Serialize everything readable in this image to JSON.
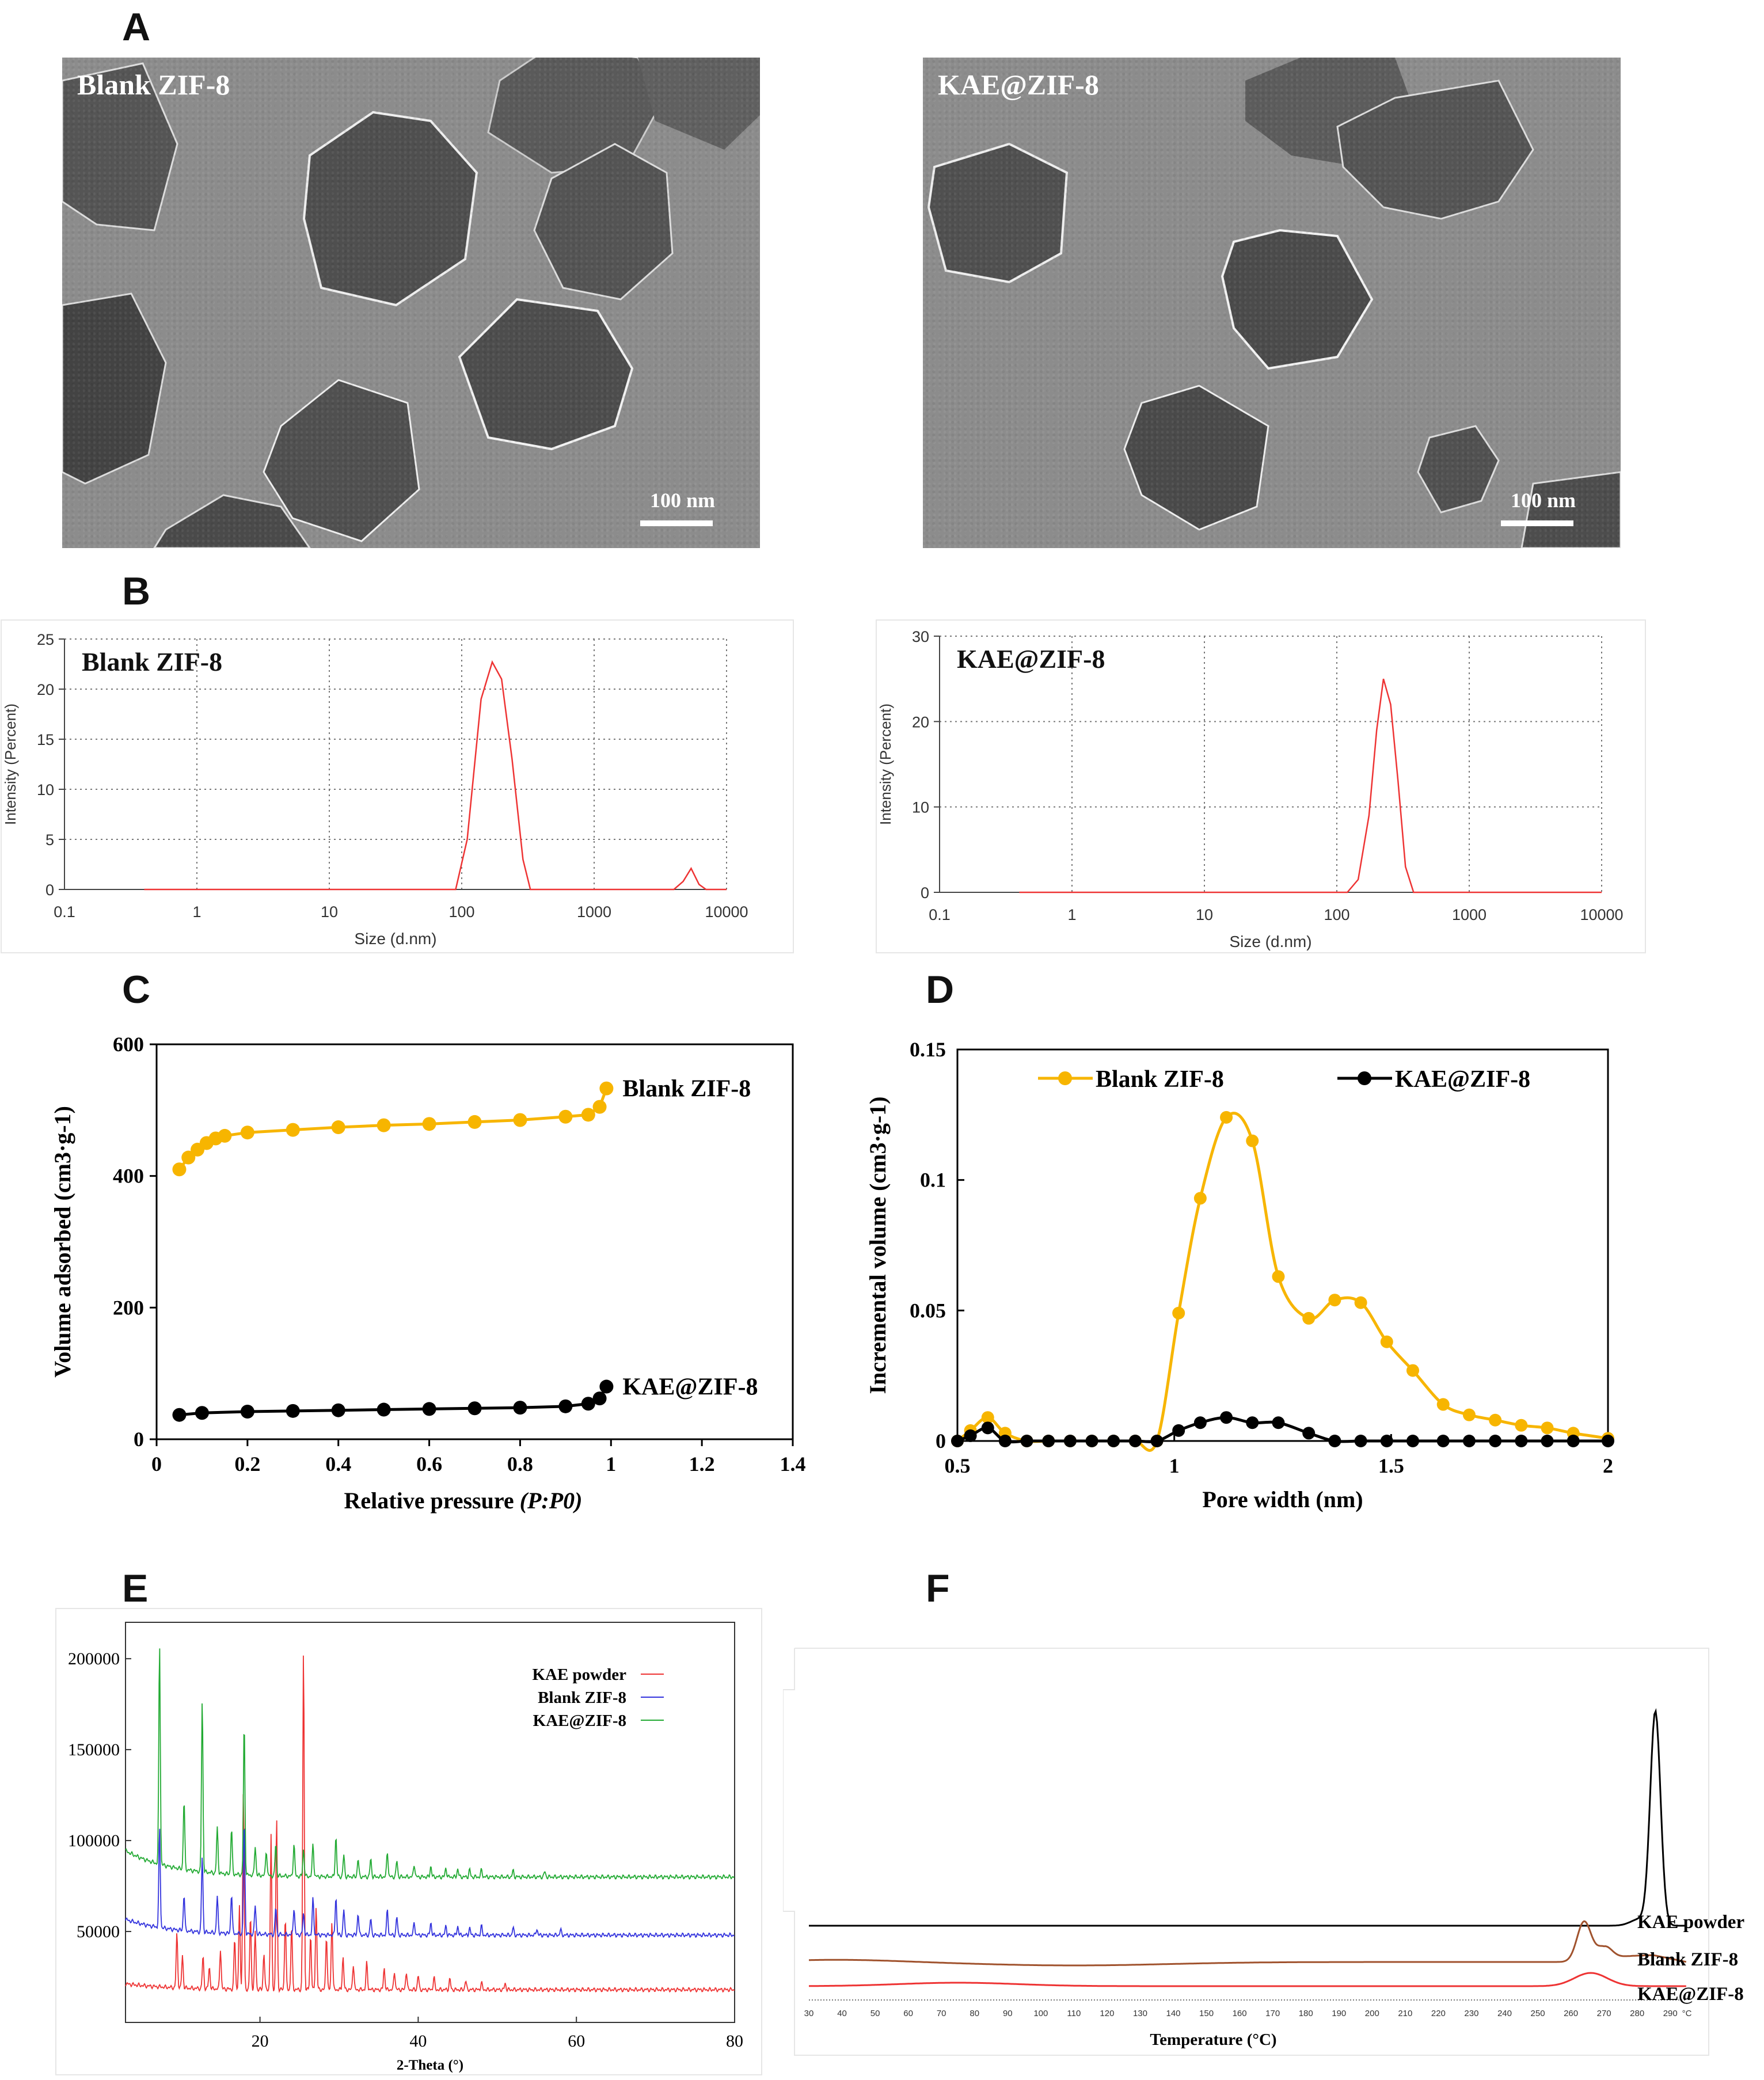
{
  "panels": {
    "A": {
      "label": "A",
      "left_title": "Blank ZIF-8",
      "right_title": "KAE@ZIF-8",
      "scale_bar": "100 nm"
    },
    "B": {
      "label": "B"
    },
    "C": {
      "label": "C"
    },
    "D": {
      "label": "D"
    },
    "E": {
      "label": "E"
    },
    "F": {
      "label": "F"
    }
  },
  "colors": {
    "red": "#ee3333",
    "yellow": "#f7b500",
    "black": "#000000",
    "blue": "#3333dd",
    "green": "#22aa33",
    "brown": "#a0522d"
  },
  "chart_data": [
    {
      "id": "B-left",
      "type": "line",
      "title": "Blank ZIF-8",
      "xlabel": "Size (d.nm)",
      "ylabel": "Intensity (Percent)",
      "x_scale": "log",
      "xlim": [
        0.1,
        10000
      ],
      "ylim": [
        0,
        25
      ],
      "xticks": [
        "0.1",
        "1",
        "10",
        "100",
        "1000",
        "10000"
      ],
      "yticks": [
        "0",
        "5",
        "10",
        "15",
        "20",
        "25"
      ],
      "grid": true,
      "series": [
        {
          "x": [
            0.4,
            90,
            110,
            140,
            170,
            200,
            240,
            290,
            330,
            400,
            4000,
            4700,
            5400,
            6200,
            7000,
            10000
          ],
          "y": [
            0,
            0,
            5,
            19,
            22.7,
            21,
            13,
            3,
            0,
            0,
            0,
            0.8,
            2.1,
            0.5,
            0,
            0
          ]
        }
      ]
    },
    {
      "id": "B-right",
      "type": "line",
      "title": "KAE@ZIF-8",
      "xlabel": "Size (d.nm)",
      "ylabel": "Intensity (Percent)",
      "x_scale": "log",
      "xlim": [
        0.1,
        10000
      ],
      "ylim": [
        0,
        30
      ],
      "xticks": [
        "0.1",
        "1",
        "10",
        "100",
        "1000",
        "10000"
      ],
      "yticks": [
        "0",
        "10",
        "20",
        "30"
      ],
      "grid": true,
      "series": [
        {
          "x": [
            0.4,
            120,
            145,
            175,
            200,
            225,
            255,
            290,
            330,
            380,
            10000
          ],
          "y": [
            0,
            0,
            1.5,
            9,
            19,
            25,
            22,
            13,
            3,
            0,
            0
          ]
        }
      ]
    },
    {
      "id": "C",
      "type": "line",
      "xlabel": "Relative pressure",
      "xlabel_italic": "(P:P0)",
      "ylabel": "Volume adsorbed (cm3·g-1)",
      "xlim": [
        0,
        1.4
      ],
      "ylim": [
        0,
        600
      ],
      "xticks": [
        "0",
        "0.2",
        "0.4",
        "0.6",
        "0.8",
        "1",
        "1.2",
        "1.4"
      ],
      "yticks": [
        "0",
        "200",
        "400",
        "600"
      ],
      "series": [
        {
          "name": "Blank ZIF-8",
          "x": [
            0.05,
            0.07,
            0.09,
            0.11,
            0.13,
            0.15,
            0.2,
            0.3,
            0.4,
            0.5,
            0.6,
            0.7,
            0.8,
            0.9,
            0.95,
            0.975,
            0.99
          ],
          "y": [
            410,
            428,
            440,
            450,
            457,
            461,
            466,
            470,
            474,
            477,
            479,
            482,
            485,
            490,
            493,
            505,
            533
          ]
        },
        {
          "name": "KAE@ZIF-8",
          "x": [
            0.05,
            0.1,
            0.2,
            0.3,
            0.4,
            0.5,
            0.6,
            0.7,
            0.8,
            0.9,
            0.95,
            0.975,
            0.99
          ],
          "y": [
            37,
            40,
            42,
            43,
            44,
            45,
            46,
            47,
            48,
            50,
            54,
            62,
            80
          ]
        }
      ]
    },
    {
      "id": "D",
      "type": "line",
      "xlabel": "Pore width (nm)",
      "ylabel": "Incremental volume (cm3·g-1)",
      "xlim": [
        0.5,
        2
      ],
      "ylim": [
        0,
        0.15
      ],
      "xticks": [
        "0.5",
        "1",
        "1.5",
        "2"
      ],
      "yticks": [
        "0",
        "0.05",
        "0.1",
        "0.15"
      ],
      "legend": "top",
      "series": [
        {
          "name": "Blank ZIF-8",
          "x": [
            0.5,
            0.53,
            0.57,
            0.61,
            0.66,
            0.71,
            0.76,
            0.81,
            0.86,
            0.91,
            0.96,
            1.01,
            1.06,
            1.12,
            1.18,
            1.24,
            1.31,
            1.37,
            1.43,
            1.49,
            1.55,
            1.62,
            1.68,
            1.74,
            1.8,
            1.86,
            1.92,
            2.0
          ],
          "y": [
            0,
            0.004,
            0.009,
            0.003,
            0,
            0,
            0,
            0,
            0,
            0,
            0,
            0.049,
            0.093,
            0.124,
            0.115,
            0.063,
            0.047,
            0.054,
            0.053,
            0.038,
            0.027,
            0.014,
            0.01,
            0.008,
            0.006,
            0.005,
            0.003,
            0.001
          ]
        },
        {
          "name": "KAE@ZIF-8",
          "x": [
            0.5,
            0.53,
            0.57,
            0.61,
            0.66,
            0.71,
            0.76,
            0.81,
            0.86,
            0.91,
            0.96,
            1.01,
            1.06,
            1.12,
            1.18,
            1.24,
            1.31,
            1.37,
            1.43,
            1.49,
            1.55,
            1.62,
            1.68,
            1.74,
            1.8,
            1.86,
            1.92,
            2.0
          ],
          "y": [
            0,
            0.002,
            0.005,
            0,
            0,
            0,
            0,
            0,
            0,
            0,
            0,
            0.004,
            0.007,
            0.009,
            0.007,
            0.007,
            0.003,
            0,
            0,
            0,
            0,
            0,
            0,
            0,
            0,
            0,
            0,
            0
          ]
        }
      ]
    },
    {
      "id": "E",
      "type": "line",
      "xlabel": "2-Theta (°)",
      "ylabel": "",
      "xlim": [
        3,
        80
      ],
      "ylim": [
        0,
        220000
      ],
      "xticks": [
        "20",
        "40",
        "60",
        "80"
      ],
      "yticks": [
        "50000",
        "100000",
        "150000",
        "200000"
      ],
      "legend": "top-right",
      "series": [
        {
          "name": "KAE powder",
          "baseline": 18000,
          "peaks": [
            [
              9.5,
              30000
            ],
            [
              10.2,
              18000
            ],
            [
              12.8,
              18000
            ],
            [
              13.6,
              12000
            ],
            [
              15,
              22000
            ],
            [
              16.8,
              28000
            ],
            [
              17.4,
              45000
            ],
            [
              17.9,
              110000
            ],
            [
              18.8,
              40000
            ],
            [
              19.4,
              32000
            ],
            [
              20.5,
              20000
            ],
            [
              21.4,
              85000
            ],
            [
              22.1,
              95000
            ],
            [
              23.2,
              40000
            ],
            [
              24,
              35000
            ],
            [
              25.5,
              188000
            ],
            [
              26.4,
              30000
            ],
            [
              27.1,
              46000
            ],
            [
              28.4,
              30000
            ],
            [
              29.1,
              38000
            ],
            [
              30.5,
              18000
            ],
            [
              31.8,
              14000
            ],
            [
              33.5,
              15000
            ],
            [
              35.7,
              12000
            ],
            [
              37,
              10000
            ],
            [
              38.5,
              10000
            ],
            [
              40,
              8000
            ],
            [
              42,
              7000
            ],
            [
              44,
              6000
            ],
            [
              46,
              5000
            ],
            [
              48,
              4000
            ],
            [
              51,
              3500
            ]
          ]
        },
        {
          "name": "Blank ZIF-8",
          "baseline": 48000,
          "peaks": [
            [
              7.3,
              55000
            ],
            [
              10.4,
              20000
            ],
            [
              12.7,
              42000
            ],
            [
              14.6,
              20000
            ],
            [
              16.4,
              22000
            ],
            [
              18,
              62000
            ],
            [
              19.4,
              16000
            ],
            [
              22,
              15000
            ],
            [
              24.3,
              15000
            ],
            [
              25.5,
              12000
            ],
            [
              26.7,
              20000
            ],
            [
              29.6,
              21000
            ],
            [
              30.6,
              14000
            ],
            [
              32.4,
              12000
            ],
            [
              34,
              9000
            ],
            [
              36.1,
              14000
            ],
            [
              37.3,
              10000
            ],
            [
              39.5,
              7000
            ],
            [
              41.6,
              7000
            ],
            [
              43.5,
              5000
            ],
            [
              45,
              5000
            ],
            [
              46.5,
              4000
            ],
            [
              48,
              5000
            ],
            [
              52,
              4000
            ],
            [
              55,
              3500
            ],
            [
              58,
              3000
            ]
          ]
        },
        {
          "name": "KAE@ZIF-8",
          "baseline": 80000,
          "peaks": [
            [
              7.3,
              122000
            ],
            [
              10.4,
              38000
            ],
            [
              12.7,
              95000
            ],
            [
              14.6,
              25000
            ],
            [
              16.4,
              25000
            ],
            [
              18,
              84000
            ],
            [
              19.4,
              16000
            ],
            [
              20.8,
              14000
            ],
            [
              22,
              18000
            ],
            [
              24.3,
              18000
            ],
            [
              25.5,
              15000
            ],
            [
              26.7,
              18000
            ],
            [
              29.6,
              22000
            ],
            [
              30.6,
              12000
            ],
            [
              32.4,
              10000
            ],
            [
              34,
              10000
            ],
            [
              36.1,
              14000
            ],
            [
              37.3,
              9000
            ],
            [
              39.5,
              7000
            ],
            [
              41.6,
              6000
            ],
            [
              43.5,
              5000
            ],
            [
              45,
              4500
            ],
            [
              46.5,
              4000
            ],
            [
              48,
              4000
            ],
            [
              52,
              3500
            ],
            [
              56,
              3000
            ]
          ]
        }
      ]
    },
    {
      "id": "F",
      "type": "line",
      "xlabel": "Temperature (°C)",
      "ylabel": "",
      "xlim": [
        30,
        295
      ],
      "xticks": [
        "30",
        "40",
        "50",
        "60",
        "70",
        "80",
        "90",
        "100",
        "110",
        "120",
        "130",
        "140",
        "150",
        "160",
        "170",
        "180",
        "190",
        "200",
        "210",
        "220",
        "230",
        "240",
        "250",
        "260",
        "270",
        "280",
        "290",
        "°C"
      ],
      "series": [
        {
          "name": "KAE powder",
          "offset": 0,
          "peaks": [
            [
              285.5,
              370,
              2.2
            ],
            [
              281,
              12,
              4
            ]
          ]
        },
        {
          "name": "Blank ZIF-8",
          "offset": 0,
          "peaks": [
            [
              264,
              70,
              3
            ],
            [
              270,
              26,
              3.2
            ]
          ]
        },
        {
          "name": "KAE@ZIF-8",
          "offset": 0,
          "peaks": [
            [
              266,
              23,
              7
            ]
          ]
        }
      ]
    }
  ]
}
